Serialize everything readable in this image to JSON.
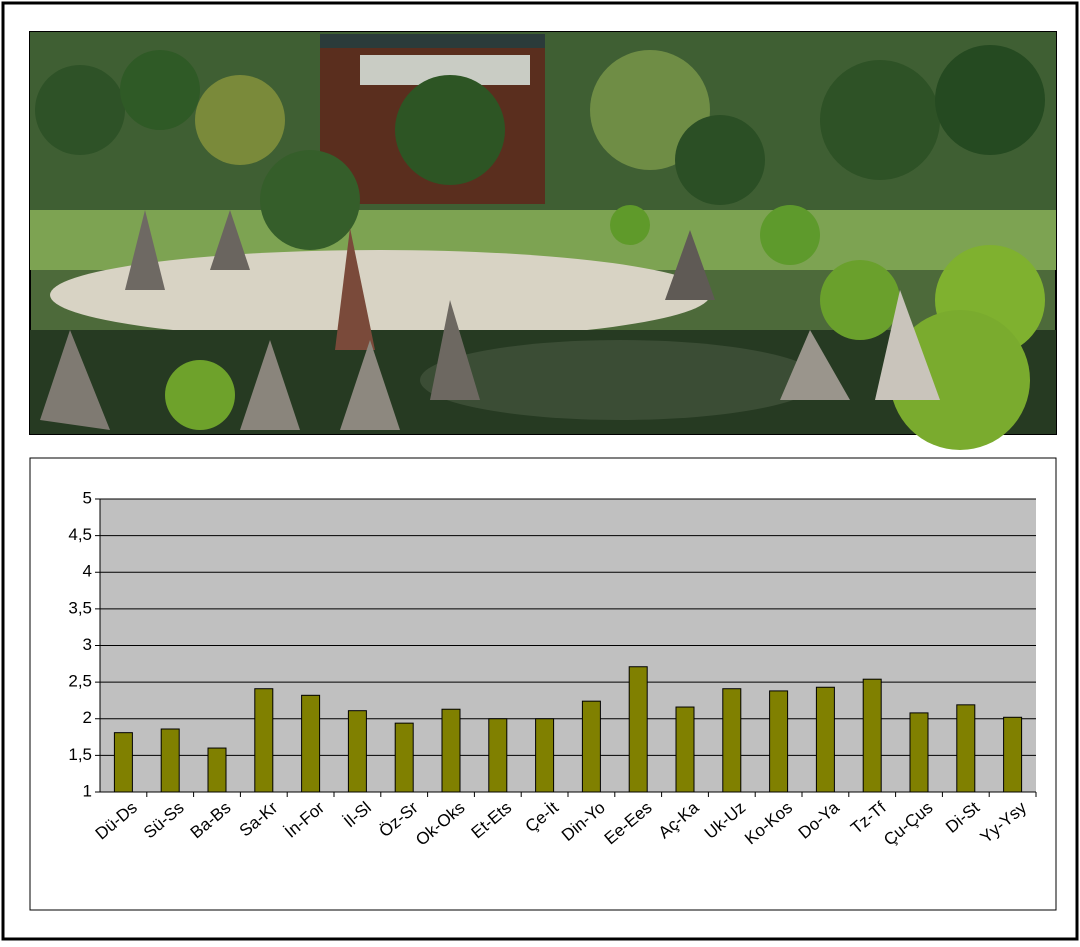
{
  "chart_data": {
    "type": "bar",
    "categories": [
      "Dü-Ds",
      "Sü-Ss",
      "Ba-Bs",
      "Sa-Kr",
      "İn-For",
      "İl-Sl",
      "Öz-Sr",
      "Ok-Oks",
      "Et-Ets",
      "Çe-İt",
      "Din-Yo",
      "Ee-Ees",
      "Aç-Ka",
      "Uk-Uz",
      "Ko-Kos",
      "Do-Ya",
      "Tz-Tf",
      "Çu-Çus",
      "Di-St",
      "Yy-Ysy"
    ],
    "values": [
      1.81,
      1.86,
      1.6,
      2.41,
      2.32,
      2.11,
      1.94,
      2.13,
      2.0,
      2.0,
      2.24,
      2.71,
      2.16,
      2.41,
      2.38,
      2.43,
      2.54,
      2.08,
      2.19,
      2.02
    ],
    "color": "#808000",
    "ylim": [
      1,
      5
    ],
    "yticks": [
      1,
      {
        "value": 1.5,
        "label": "1,5"
      },
      2,
      {
        "value": 2.5,
        "label": "2,5"
      },
      3,
      {
        "value": 3.5,
        "label": "3,5"
      },
      4,
      {
        "value": 4.5,
        "label": "4,5"
      },
      5
    ],
    "grid": true
  }
}
